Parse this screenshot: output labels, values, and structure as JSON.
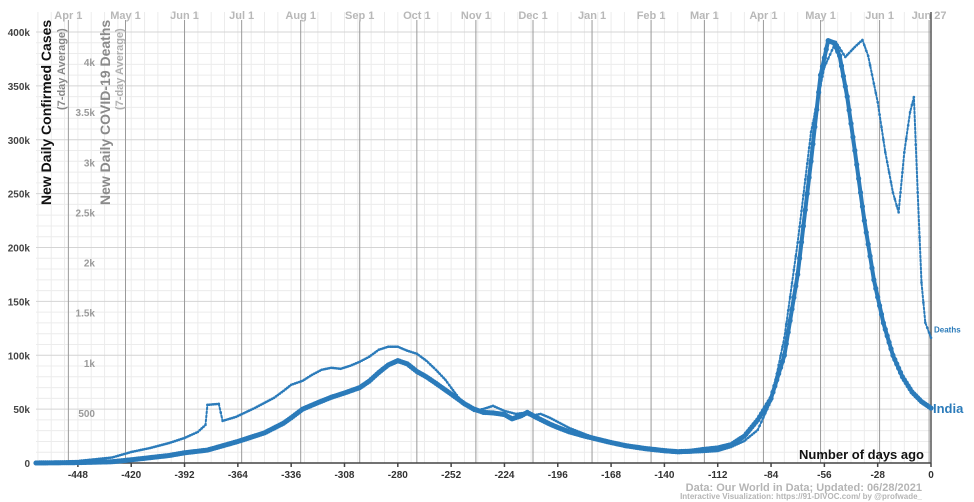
{
  "chart_data": {
    "type": "line",
    "y_axis_left": {
      "label": "New Daily Confirmed Cases",
      "sublabel": "(7-day Average)",
      "range": [
        0,
        400000
      ],
      "ticks": [
        0,
        50000,
        100000,
        150000,
        200000,
        250000,
        300000,
        350000,
        400000
      ],
      "tick_labels": [
        "0",
        "50k",
        "100k",
        "150k",
        "200k",
        "250k",
        "300k",
        "350k",
        "400k"
      ]
    },
    "y_axis_right": {
      "label": "New Daily COVID-19 Deaths",
      "sublabel": "(7-day Average)",
      "range": [
        0,
        4200
      ],
      "ticks": [
        500,
        1000,
        1500,
        2000,
        2500,
        3000,
        3500,
        4000
      ],
      "tick_labels": [
        "500",
        "1k",
        "1.5k",
        "2k",
        "2.5k",
        "3k",
        "3.5k",
        "4k"
      ]
    },
    "x_axis": {
      "label": "Number of days ago",
      "range": [
        -470,
        0
      ],
      "ticks": [
        -448,
        -420,
        -392,
        -364,
        -336,
        -308,
        -280,
        -252,
        -224,
        -196,
        -168,
        -140,
        -112,
        -84,
        -56,
        -28,
        0
      ],
      "tick_labels": [
        "-448",
        "-420",
        "-392",
        "-364",
        "-336",
        "-308",
        "-280",
        "-252",
        "-224",
        "-196",
        "-168",
        "-140",
        "-112",
        "-84",
        "-56",
        "-28",
        "0"
      ],
      "minor_step": 7
    },
    "month_markers": [
      {
        "label": "Apr 1",
        "day": -453
      },
      {
        "label": "May 1",
        "day": -423
      },
      {
        "label": "Jun 1",
        "day": -392
      },
      {
        "label": "Jul 1",
        "day": -362
      },
      {
        "label": "Aug 1",
        "day": -331
      },
      {
        "label": "Sep 1",
        "day": -300
      },
      {
        "label": "Oct 1",
        "day": -270
      },
      {
        "label": "Nov 1",
        "day": -239
      },
      {
        "label": "Dec 1",
        "day": -209
      },
      {
        "label": "Jan 1",
        "day": -178
      },
      {
        "label": "Feb 1",
        "day": -147
      },
      {
        "label": "Mar 1",
        "day": -119
      },
      {
        "label": "Apr 1",
        "day": -88
      },
      {
        "label": "May 1",
        "day": -58
      },
      {
        "label": "Jun 1",
        "day": -27
      },
      {
        "label": "Jun 27",
        "day": -1
      }
    ],
    "series": [
      {
        "name": "India",
        "color": "#2b7bba",
        "role": "cases",
        "points": [
          [
            -470,
            50
          ],
          [
            -448,
            400
          ],
          [
            -430,
            1200
          ],
          [
            -420,
            3000
          ],
          [
            -400,
            7000
          ],
          [
            -392,
            9500
          ],
          [
            -380,
            12000
          ],
          [
            -370,
            17000
          ],
          [
            -364,
            20000
          ],
          [
            -350,
            28000
          ],
          [
            -340,
            37000
          ],
          [
            -336,
            42000
          ],
          [
            -330,
            50000
          ],
          [
            -322,
            56000
          ],
          [
            -315,
            61000
          ],
          [
            -308,
            65000
          ],
          [
            -300,
            70000
          ],
          [
            -295,
            76000
          ],
          [
            -290,
            84000
          ],
          [
            -285,
            91000
          ],
          [
            -280,
            95000
          ],
          [
            -275,
            92000
          ],
          [
            -270,
            85000
          ],
          [
            -265,
            80000
          ],
          [
            -260,
            74000
          ],
          [
            -252,
            64000
          ],
          [
            -245,
            55000
          ],
          [
            -240,
            50000
          ],
          [
            -235,
            47000
          ],
          [
            -230,
            46500
          ],
          [
            -224,
            45000
          ],
          [
            -220,
            41000
          ],
          [
            -215,
            44000
          ],
          [
            -212,
            47000
          ],
          [
            -208,
            43000
          ],
          [
            -200,
            36000
          ],
          [
            -196,
            33000
          ],
          [
            -190,
            29000
          ],
          [
            -182,
            25000
          ],
          [
            -175,
            22000
          ],
          [
            -168,
            19000
          ],
          [
            -160,
            16000
          ],
          [
            -150,
            13500
          ],
          [
            -140,
            11500
          ],
          [
            -133,
            10500
          ],
          [
            -126,
            11000
          ],
          [
            -120,
            12500
          ],
          [
            -112,
            14000
          ],
          [
            -105,
            17000
          ],
          [
            -98,
            25000
          ],
          [
            -91,
            40000
          ],
          [
            -84,
            60000
          ],
          [
            -77,
            100000
          ],
          [
            -70,
            175000
          ],
          [
            -63,
            280000
          ],
          [
            -58,
            360000
          ],
          [
            -54,
            392000
          ],
          [
            -51,
            390000
          ],
          [
            -48,
            378000
          ],
          [
            -44,
            340000
          ],
          [
            -40,
            290000
          ],
          [
            -35,
            225000
          ],
          [
            -30,
            170000
          ],
          [
            -25,
            130000
          ],
          [
            -20,
            100000
          ],
          [
            -15,
            80000
          ],
          [
            -10,
            66000
          ],
          [
            -5,
            57000
          ],
          [
            0,
            51000
          ]
        ]
      },
      {
        "name": "Deaths",
        "color": "#2b7bba",
        "role": "deaths",
        "points": [
          [
            -470,
            3
          ],
          [
            -448,
            20
          ],
          [
            -430,
            55
          ],
          [
            -420,
            110
          ],
          [
            -410,
            150
          ],
          [
            -400,
            200
          ],
          [
            -392,
            250
          ],
          [
            -385,
            310
          ],
          [
            -381,
            380
          ],
          [
            -380,
            580
          ],
          [
            -374,
            590
          ],
          [
            -372,
            420
          ],
          [
            -365,
            460
          ],
          [
            -355,
            550
          ],
          [
            -345,
            650
          ],
          [
            -340,
            720
          ],
          [
            -336,
            780
          ],
          [
            -330,
            820
          ],
          [
            -325,
            880
          ],
          [
            -320,
            930
          ],
          [
            -315,
            950
          ],
          [
            -310,
            940
          ],
          [
            -305,
            970
          ],
          [
            -300,
            1010
          ],
          [
            -295,
            1060
          ],
          [
            -290,
            1130
          ],
          [
            -285,
            1160
          ],
          [
            -280,
            1160
          ],
          [
            -275,
            1120
          ],
          [
            -270,
            1090
          ],
          [
            -265,
            1020
          ],
          [
            -260,
            930
          ],
          [
            -255,
            830
          ],
          [
            -250,
            700
          ],
          [
            -245,
            580
          ],
          [
            -240,
            520
          ],
          [
            -235,
            540
          ],
          [
            -230,
            570
          ],
          [
            -224,
            520
          ],
          [
            -218,
            490
          ],
          [
            -214,
            500
          ],
          [
            -210,
            470
          ],
          [
            -205,
            490
          ],
          [
            -200,
            450
          ],
          [
            -196,
            410
          ],
          [
            -190,
            350
          ],
          [
            -182,
            290
          ],
          [
            -175,
            240
          ],
          [
            -168,
            200
          ],
          [
            -160,
            160
          ],
          [
            -150,
            130
          ],
          [
            -140,
            110
          ],
          [
            -133,
            100
          ],
          [
            -126,
            105
          ],
          [
            -120,
            110
          ],
          [
            -112,
            120
          ],
          [
            -105,
            160
          ],
          [
            -98,
            220
          ],
          [
            -91,
            330
          ],
          [
            -84,
            620
          ],
          [
            -77,
            1250
          ],
          [
            -70,
            2200
          ],
          [
            -63,
            3300
          ],
          [
            -56,
            3950
          ],
          [
            -50,
            4200
          ],
          [
            -45,
            4050
          ],
          [
            -40,
            4150
          ],
          [
            -36,
            4220
          ],
          [
            -33,
            4060
          ],
          [
            -28,
            3600
          ],
          [
            -24,
            3100
          ],
          [
            -20,
            2700
          ],
          [
            -17,
            2500
          ],
          [
            -14,
            3100
          ],
          [
            -11,
            3500
          ],
          [
            -9,
            3650
          ],
          [
            -7,
            2700
          ],
          [
            -5,
            1800
          ],
          [
            -3,
            1400
          ],
          [
            0,
            1250
          ]
        ]
      }
    ],
    "labels": {
      "cases_series": "India",
      "deaths_series": "Deaths"
    },
    "credits": {
      "source": "Data: Our World in Data; Updated: 06/28/2021",
      "viz": "Interactive Visualization: https://91-DIVOC.com/ by @profwade_"
    },
    "grid": true
  }
}
